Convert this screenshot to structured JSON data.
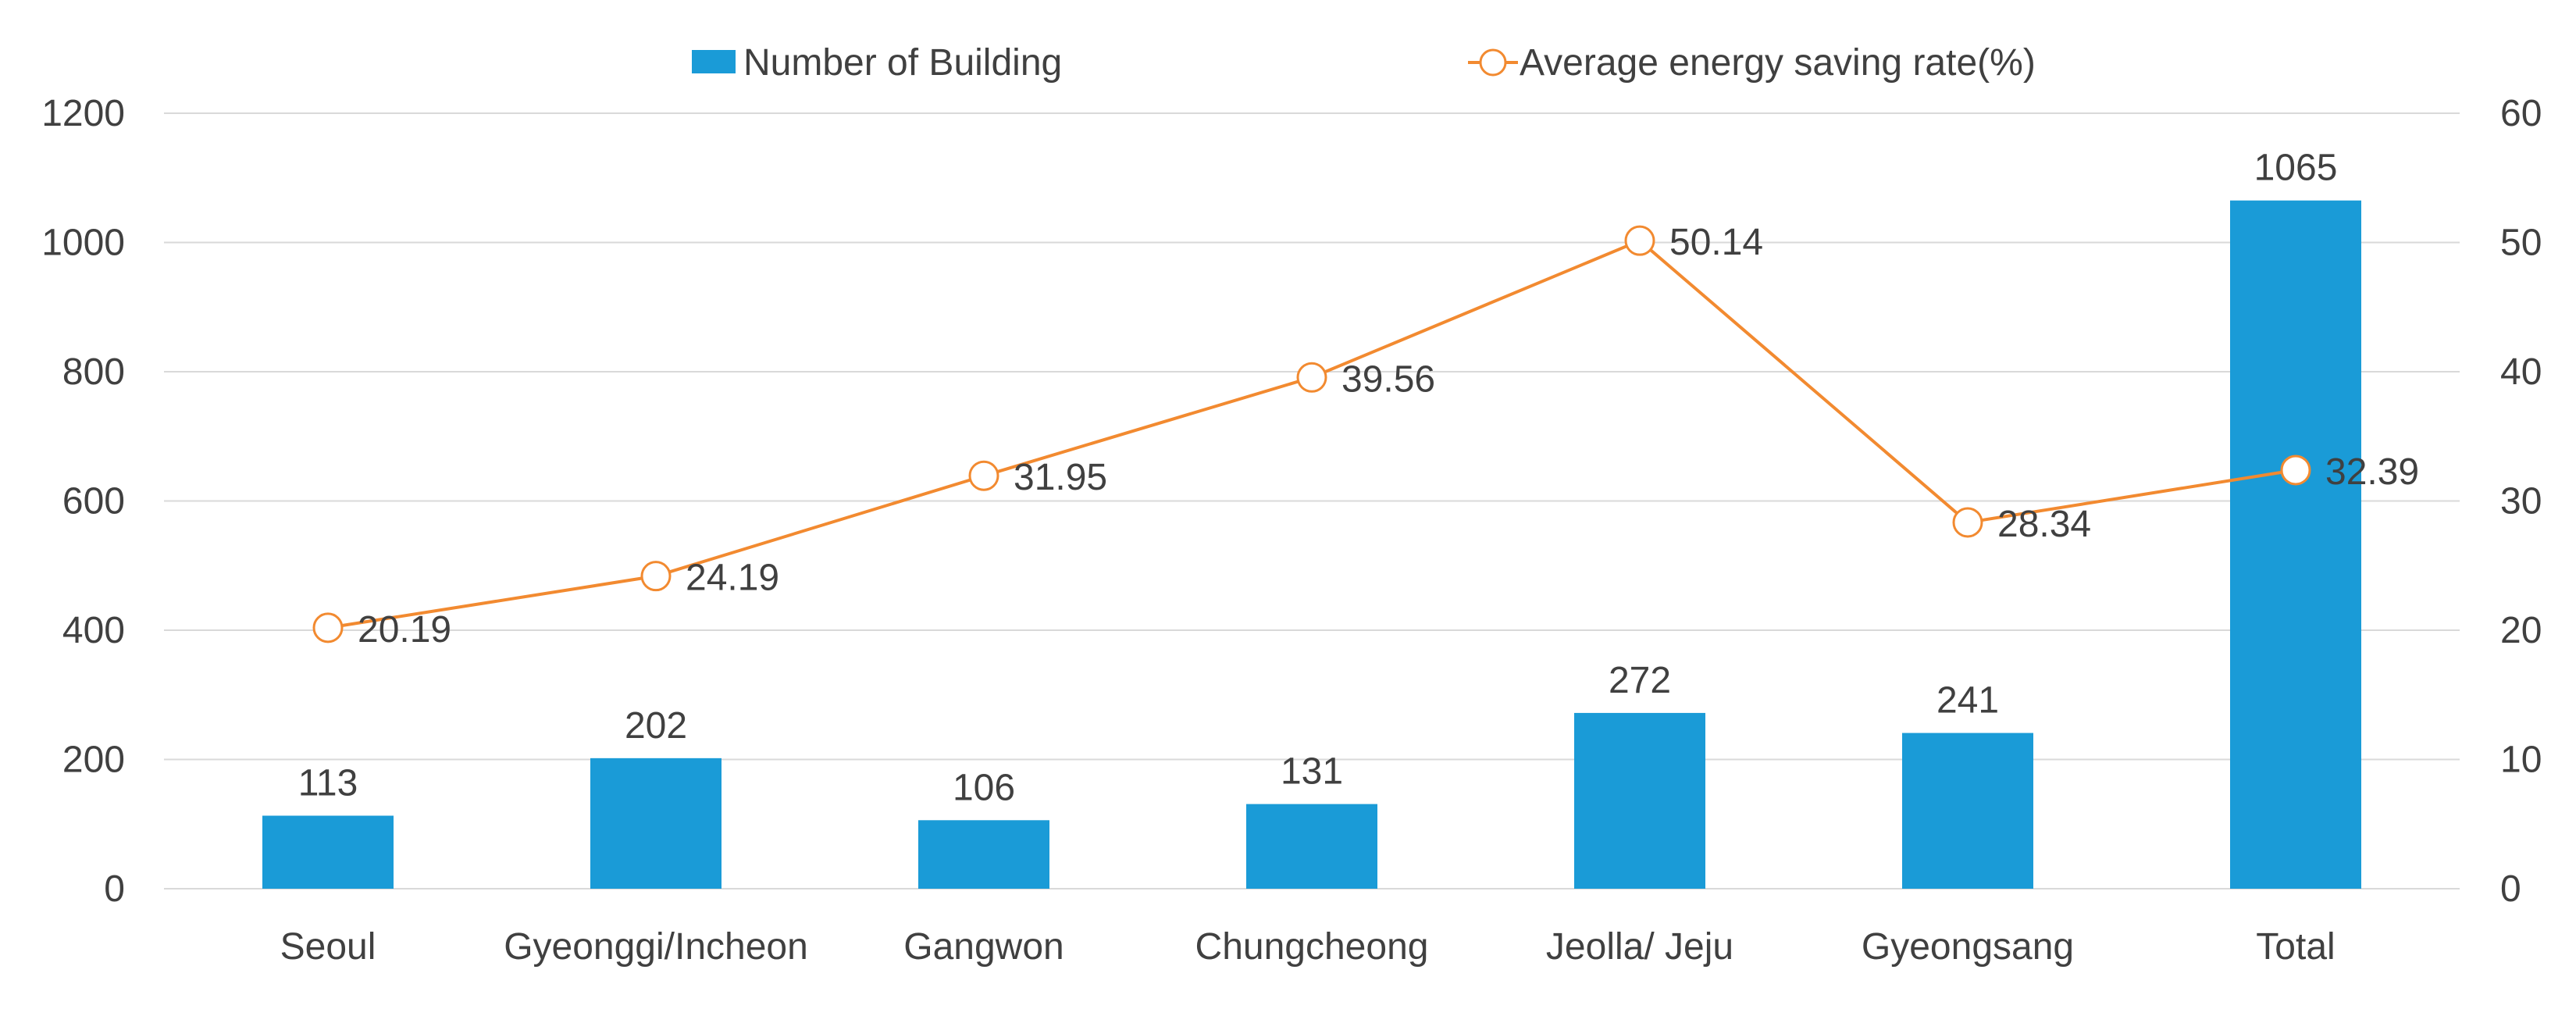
{
  "chart_data": {
    "type": "bar",
    "categories": [
      "Seoul",
      "Gyeonggi/Incheon",
      "Gangwon",
      "Chungcheong",
      "Jeolla/ Jeju",
      "Gyeongsang",
      "Total"
    ],
    "series": [
      {
        "name": "Number of Building",
        "type": "bar",
        "axis": "left",
        "color": "#1a9bd7",
        "values": [
          113,
          202,
          106,
          131,
          272,
          241,
          1065
        ],
        "labels": [
          "113",
          "202",
          "106",
          "131",
          "272",
          "241",
          "1065"
        ]
      },
      {
        "name": "Average energy saving rate(%)",
        "type": "line",
        "axis": "right",
        "color": "#f28a30",
        "values": [
          20.19,
          24.19,
          31.95,
          39.56,
          50.14,
          28.34,
          32.39
        ],
        "labels": [
          "20.19",
          "24.19",
          "31.95",
          "39.56",
          "50.14",
          "28.34",
          "32.39"
        ]
      }
    ],
    "y_left": {
      "ylim": [
        0,
        1200
      ],
      "ticks": [
        0,
        200,
        400,
        600,
        800,
        1000,
        1200
      ],
      "tick_labels": [
        "0",
        "200",
        "400",
        "600",
        "800",
        "1000",
        "1200"
      ]
    },
    "y_right": {
      "ylim": [
        0,
        60
      ],
      "ticks": [
        0,
        10,
        20,
        30,
        40,
        50,
        60
      ],
      "tick_labels": [
        "0",
        "10",
        "20",
        "30",
        "40",
        "50",
        "60"
      ]
    },
    "title": "",
    "xlabel": "",
    "ylabel": "",
    "grid": true,
    "legend_position": "top-center"
  }
}
